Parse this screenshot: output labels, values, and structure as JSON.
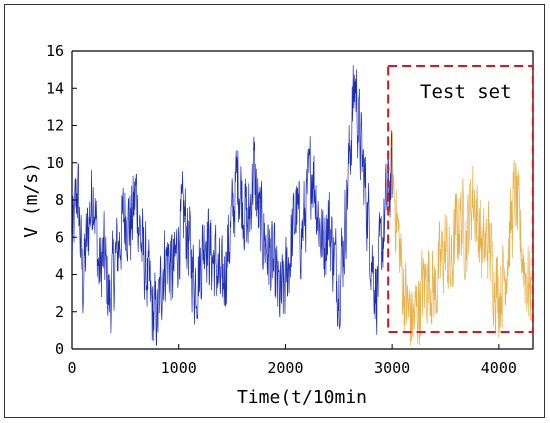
{
  "chart_data": {
    "type": "line",
    "xlabel": "Time(t/10min",
    "ylabel": "V (m/s)",
    "xlim": [
      0,
      4320
    ],
    "ylim": [
      0,
      16
    ],
    "x_ticks": [
      0,
      1000,
      2000,
      3000,
      4000
    ],
    "y_ticks": [
      0,
      2,
      4,
      6,
      8,
      10,
      12,
      14,
      16
    ],
    "grid": false,
    "annotation": "Test set",
    "test_region_x": [
      3000,
      4300
    ],
    "series": [
      {
        "color": "#1f2fb5",
        "envelope": [
          {
            "x": 0,
            "y": 5.5
          },
          {
            "x": 50,
            "y": 8.8
          },
          {
            "x": 100,
            "y": 3.5
          },
          {
            "x": 150,
            "y": 6.5
          },
          {
            "x": 200,
            "y": 8.9
          },
          {
            "x": 250,
            "y": 4.0
          },
          {
            "x": 300,
            "y": 5.0
          },
          {
            "x": 350,
            "y": 2.5
          },
          {
            "x": 400,
            "y": 4.5
          },
          {
            "x": 450,
            "y": 6.0
          },
          {
            "x": 500,
            "y": 7.5
          },
          {
            "x": 550,
            "y": 6.5
          },
          {
            "x": 600,
            "y": 8.5
          },
          {
            "x": 650,
            "y": 5.5
          },
          {
            "x": 700,
            "y": 4.0
          },
          {
            "x": 750,
            "y": 2.0
          },
          {
            "x": 800,
            "y": 1.5
          },
          {
            "x": 850,
            "y": 4.5
          },
          {
            "x": 900,
            "y": 5.0
          },
          {
            "x": 950,
            "y": 4.0
          },
          {
            "x": 1000,
            "y": 6.0
          },
          {
            "x": 1050,
            "y": 7.2
          },
          {
            "x": 1100,
            "y": 5.5
          },
          {
            "x": 1150,
            "y": 3.5
          },
          {
            "x": 1200,
            "y": 4.5
          },
          {
            "x": 1250,
            "y": 6.5
          },
          {
            "x": 1300,
            "y": 5.0
          },
          {
            "x": 1350,
            "y": 4.5
          },
          {
            "x": 1400,
            "y": 3.0
          },
          {
            "x": 1450,
            "y": 5.0
          },
          {
            "x": 1500,
            "y": 7.0
          },
          {
            "x": 1550,
            "y": 9.5
          },
          {
            "x": 1600,
            "y": 8.0
          },
          {
            "x": 1650,
            "y": 6.5
          },
          {
            "x": 1700,
            "y": 9.8
          },
          {
            "x": 1750,
            "y": 7.0
          },
          {
            "x": 1800,
            "y": 6.0
          },
          {
            "x": 1850,
            "y": 5.0
          },
          {
            "x": 1900,
            "y": 4.0
          },
          {
            "x": 1950,
            "y": 2.5
          },
          {
            "x": 2000,
            "y": 3.5
          },
          {
            "x": 2050,
            "y": 5.5
          },
          {
            "x": 2100,
            "y": 7.5
          },
          {
            "x": 2150,
            "y": 6.0
          },
          {
            "x": 2200,
            "y": 8.0
          },
          {
            "x": 2250,
            "y": 10.0
          },
          {
            "x": 2300,
            "y": 7.5
          },
          {
            "x": 2350,
            "y": 5.5
          },
          {
            "x": 2400,
            "y": 7.0
          },
          {
            "x": 2450,
            "y": 5.0
          },
          {
            "x": 2500,
            "y": 3.5
          },
          {
            "x": 2550,
            "y": 6.0
          },
          {
            "x": 2600,
            "y": 10.5
          },
          {
            "x": 2650,
            "y": 14.5
          },
          {
            "x": 2700,
            "y": 11.0
          },
          {
            "x": 2750,
            "y": 8.5
          },
          {
            "x": 2800,
            "y": 5.5
          },
          {
            "x": 2850,
            "y": 3.0
          },
          {
            "x": 2900,
            "y": 5.5
          },
          {
            "x": 2950,
            "y": 8.0
          },
          {
            "x": 3000,
            "y": 9.5
          }
        ]
      },
      {
        "color": "#e8b04a",
        "envelope": [
          {
            "x": 3000,
            "y": 9.5
          },
          {
            "x": 3050,
            "y": 6.5
          },
          {
            "x": 3100,
            "y": 3.5
          },
          {
            "x": 3150,
            "y": 2.0
          },
          {
            "x": 3200,
            "y": 1.5
          },
          {
            "x": 3250,
            "y": 2.5
          },
          {
            "x": 3300,
            "y": 3.5
          },
          {
            "x": 3350,
            "y": 4.0
          },
          {
            "x": 3400,
            "y": 3.0
          },
          {
            "x": 3450,
            "y": 4.5
          },
          {
            "x": 3500,
            "y": 5.5
          },
          {
            "x": 3550,
            "y": 4.0
          },
          {
            "x": 3600,
            "y": 6.5
          },
          {
            "x": 3650,
            "y": 7.0
          },
          {
            "x": 3700,
            "y": 6.0
          },
          {
            "x": 3750,
            "y": 8.5
          },
          {
            "x": 3800,
            "y": 7.0
          },
          {
            "x": 3850,
            "y": 5.0
          },
          {
            "x": 3900,
            "y": 6.0
          },
          {
            "x": 3950,
            "y": 4.0
          },
          {
            "x": 4000,
            "y": 3.0
          },
          {
            "x": 4050,
            "y": 4.0
          },
          {
            "x": 4100,
            "y": 6.0
          },
          {
            "x": 4150,
            "y": 8.5
          },
          {
            "x": 4200,
            "y": 6.0
          },
          {
            "x": 4250,
            "y": 4.0
          },
          {
            "x": 4300,
            "y": 3.0
          }
        ]
      }
    ]
  }
}
